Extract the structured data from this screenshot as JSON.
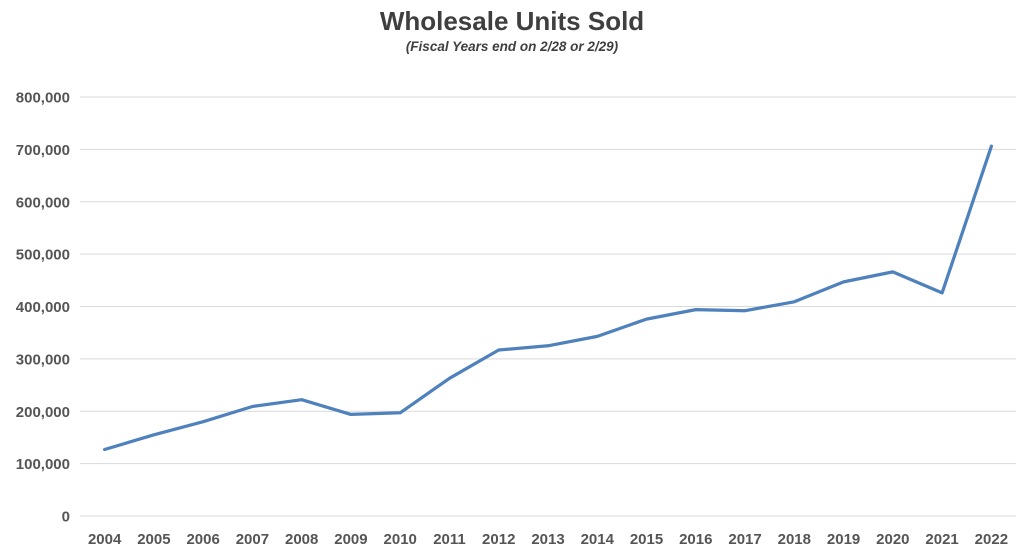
{
  "chart_data": {
    "type": "line",
    "title": "Wholesale Units Sold",
    "subtitle": "(Fiscal Years end on 2/28 or 2/29)",
    "categories": [
      "2004",
      "2005",
      "2006",
      "2007",
      "2008",
      "2009",
      "2010",
      "2011",
      "2012",
      "2013",
      "2014",
      "2015",
      "2016",
      "2017",
      "2018",
      "2019",
      "2020",
      "2021",
      "2022"
    ],
    "series": [
      {
        "name": "Wholesale Units Sold",
        "values": [
          127000,
          155000,
          180000,
          209000,
          222000,
          194000,
          197000,
          263000,
          317000,
          325000,
          343000,
          376000,
          394000,
          392000,
          409000,
          447000,
          466000,
          426000,
          706000
        ]
      }
    ],
    "xlabel": "",
    "ylabel": "",
    "ylim": [
      0,
      800000
    ],
    "ytick_step": 100000,
    "grid": "horizontal",
    "legend": "none",
    "colors": {
      "line": "#4f81bd",
      "gridline": "#d9d9d9",
      "tick_label": "#555555",
      "title": "#3f3f3f"
    }
  }
}
